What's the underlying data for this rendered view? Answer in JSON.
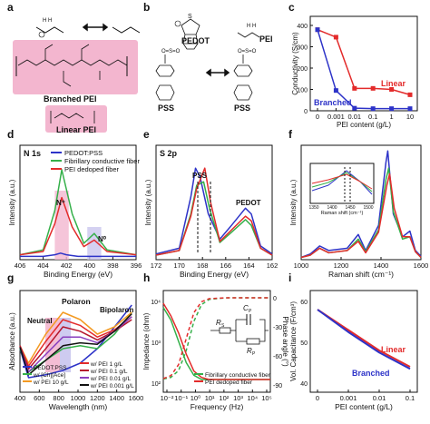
{
  "panel_letters": [
    "a",
    "b",
    "c",
    "d",
    "e",
    "f",
    "g",
    "h",
    "i"
  ],
  "colors": {
    "blue": "#2d33c8",
    "red": "#e32b2b",
    "green": "#35b04a",
    "orange": "#f39a22",
    "darkred": "#b5172e",
    "pink": "#f3b6cf",
    "lavender": "#c9c5ee",
    "black": "#111111"
  },
  "panel_a": {
    "branched_label": "Branched PEI",
    "linear_label": "Linear PEI"
  },
  "panel_b": {
    "pedot_label": "PEDOT",
    "pss_left": "PSS",
    "pss_right": "PSS",
    "pei_label": "PEI"
  },
  "chart_data": [
    {
      "panel": "c",
      "type": "line",
      "xlabel": "PEI content (g/L)",
      "ylabel": "Conductivity (S/cm)",
      "categories": [
        "0",
        "0.001",
        "0.01",
        "0.1",
        "1",
        "10"
      ],
      "ylim": [
        0,
        400
      ],
      "yticks": [
        "0",
        "100",
        "200",
        "300",
        "400"
      ],
      "series": [
        {
          "name": "Linear",
          "color": "#e32b2b",
          "values": [
            380,
            345,
            105,
            105,
            100,
            75
          ]
        },
        {
          "name": "Branched",
          "color": "#2d33c8",
          "values": [
            380,
            95,
            12,
            10,
            10,
            10
          ]
        }
      ]
    },
    {
      "panel": "d",
      "type": "line",
      "title": "N 1s",
      "xlabel": "Binding Energy (eV)",
      "ylabel": "Intensity (a.u.)",
      "xticks": [
        "406",
        "404",
        "402",
        "400",
        "398",
        "396"
      ],
      "xlim": [
        406,
        396
      ],
      "annotations": [
        "N⁺",
        "N⁰"
      ],
      "series": [
        {
          "name": "PEDOT:PSS",
          "color": "#2d33c8",
          "x": [
            406,
            404,
            403,
            402.5,
            402,
            401,
            400,
            399,
            398,
            396
          ],
          "y": [
            2,
            2,
            3,
            4,
            3,
            2,
            2,
            2,
            2,
            2
          ]
        },
        {
          "name": "Fibrillary conductive fiber",
          "color": "#35b04a",
          "x": [
            406,
            404,
            403,
            402.4,
            401.5,
            400.5,
            399.6,
            398.5,
            396
          ],
          "y": [
            3,
            6,
            30,
            55,
            28,
            10,
            16,
            6,
            3
          ]
        },
        {
          "name": "PEI dedoped fiber",
          "color": "#e32b2b",
          "x": [
            406,
            404,
            403,
            402.4,
            401.5,
            400.5,
            399.6,
            398.5,
            396
          ],
          "y": [
            3,
            5,
            22,
            38,
            20,
            8,
            12,
            5,
            3
          ]
        }
      ]
    },
    {
      "panel": "e",
      "type": "line",
      "title": "S 2p",
      "xlabel": "Binding Energy (eV)",
      "ylabel": "Intensity (a.u.)",
      "xticks": [
        "172",
        "170",
        "168",
        "166",
        "164",
        "162"
      ],
      "xlim": [
        172,
        162
      ],
      "annotations": [
        "PSS",
        "PEDOT"
      ],
      "series": [
        {
          "name": "PEDOT:PSS",
          "color": "#2d33c8",
          "x": [
            172,
            170,
            169,
            168.6,
            168.2,
            167.5,
            166.5,
            165.5,
            164.3,
            163.8,
            163,
            162
          ],
          "y": [
            5,
            10,
            55,
            80,
            72,
            40,
            18,
            30,
            45,
            40,
            12,
            5
          ]
        },
        {
          "name": "Fibrillary conductive fiber",
          "color": "#35b04a",
          "x": [
            172,
            170,
            169,
            168.5,
            167.9,
            167.4,
            166.5,
            165.5,
            164.3,
            163.8,
            163,
            162
          ],
          "y": [
            4,
            8,
            40,
            65,
            68,
            45,
            15,
            24,
            35,
            30,
            10,
            4
          ]
        },
        {
          "name": "PEI dedoped fiber",
          "color": "#e32b2b",
          "x": [
            172,
            170,
            169,
            168.5,
            167.8,
            167.3,
            166.5,
            165.5,
            164.3,
            163.8,
            163,
            162
          ],
          "y": [
            4,
            8,
            38,
            62,
            80,
            50,
            16,
            26,
            38,
            34,
            10,
            4
          ]
        }
      ]
    },
    {
      "panel": "f",
      "type": "line",
      "xlabel": "Raman shift (cm⁻¹)",
      "ylabel": "Intensity (a.u.)",
      "xticks": [
        "1000",
        "1200",
        "1400",
        "1600"
      ],
      "xlim": [
        950,
        1600
      ],
      "inset": {
        "xlabel": "Raman shift (cm⁻¹)",
        "xticks": [
          "1350",
          "1400",
          "1450",
          "1500"
        ]
      },
      "series": [
        {
          "name": "PEDOT:PSS",
          "color": "#2d33c8",
          "x": [
            950,
            1000,
            1050,
            1100,
            1200,
            1260,
            1300,
            1370,
            1410,
            1420,
            1450,
            1500,
            1540,
            1570,
            1600
          ],
          "y": [
            2,
            5,
            12,
            8,
            10,
            22,
            8,
            30,
            85,
            95,
            40,
            20,
            25,
            8,
            3
          ]
        },
        {
          "name": "Fibrillary conductive fiber",
          "color": "#35b04a",
          "x": [
            950,
            1000,
            1050,
            1100,
            1200,
            1260,
            1300,
            1370,
            1410,
            1425,
            1450,
            1500,
            1540,
            1570,
            1600
          ],
          "y": [
            2,
            4,
            10,
            6,
            8,
            18,
            7,
            26,
            70,
            80,
            42,
            18,
            20,
            7,
            2
          ]
        },
        {
          "name": "PEI dedoped fiber",
          "color": "#e32b2b",
          "x": [
            950,
            1000,
            1050,
            1100,
            1200,
            1260,
            1300,
            1370,
            1415,
            1430,
            1455,
            1500,
            1540,
            1570,
            1600
          ],
          "y": [
            2,
            4,
            10,
            6,
            8,
            16,
            6,
            24,
            65,
            75,
            45,
            20,
            20,
            7,
            2
          ]
        }
      ]
    },
    {
      "panel": "g",
      "type": "line",
      "xlabel": "Wavelength (nm)",
      "ylabel": "Absorbance (a.u.)",
      "xticks": [
        "400",
        "600",
        "800",
        "1000",
        "1200",
        "1400",
        "1600"
      ],
      "xlim": [
        300,
        1650
      ],
      "annotations": [
        "Polaron",
        "Neutral",
        "Bipolaron"
      ],
      "series": [
        {
          "name": "PEDOT:PSS",
          "color": "#2d33c8",
          "x": [
            300,
            400,
            600,
            800,
            1000,
            1200,
            1400,
            1600
          ],
          "y": [
            30,
            10,
            12,
            15,
            20,
            30,
            45,
            60
          ]
        },
        {
          "name": "w/ [Ch][Ace]",
          "color": "#35b04a",
          "x": [
            300,
            400,
            600,
            800,
            1000,
            1200,
            1400,
            1600
          ],
          "y": [
            30,
            14,
            22,
            30,
            32,
            30,
            40,
            55
          ]
        },
        {
          "name": "w/ PEI 10 g/L",
          "color": "#f39a22",
          "x": [
            300,
            400,
            600,
            800,
            1000,
            1200,
            1400,
            1600
          ],
          "y": [
            32,
            20,
            40,
            55,
            50,
            40,
            45,
            55
          ]
        },
        {
          "name": "w/ PEI 1 g/L",
          "color": "#e32b2b",
          "x": [
            300,
            400,
            600,
            800,
            1000,
            1200,
            1400,
            1600
          ],
          "y": [
            32,
            18,
            35,
            50,
            46,
            38,
            43,
            52
          ]
        },
        {
          "name": "w/ PEI 0.1 g/L",
          "color": "#b5172e",
          "x": [
            300,
            400,
            600,
            800,
            1000,
            1200,
            1400,
            1600
          ],
          "y": [
            32,
            16,
            30,
            45,
            42,
            36,
            42,
            50
          ]
        },
        {
          "name": "w/ PEI 0.01 g/L",
          "color": "#8a3fbf",
          "x": [
            300,
            400,
            600,
            800,
            1000,
            1200,
            1400,
            1600
          ],
          "y": [
            31,
            14,
            26,
            38,
            38,
            34,
            42,
            52
          ]
        },
        {
          "name": "w/ PEI 0.001 g/L",
          "color": "#111111",
          "x": [
            300,
            400,
            600,
            800,
            1000,
            1200,
            1400,
            1600
          ],
          "y": [
            31,
            12,
            22,
            32,
            34,
            33,
            42,
            54
          ]
        }
      ]
    },
    {
      "panel": "h",
      "type": "line",
      "xlabel": "Frequency (Hz)",
      "ylabel": "Impedance (ohm)",
      "ylabel_right": "Phase angle (°)",
      "xticks": [
        "10⁻²",
        "10⁻¹",
        "10⁰",
        "10¹",
        "10²",
        "10³",
        "10⁴",
        "10⁵"
      ],
      "yticks": [
        "10²",
        "10³",
        "10⁴"
      ],
      "yticks_right": [
        "0",
        "-30",
        "-60",
        "-90"
      ],
      "circuit": {
        "rs": "R_S",
        "cp": "C_P",
        "rp": "R_P"
      },
      "series": [
        {
          "name": "Fibrillary conductive fiber",
          "color": "#35b04a",
          "x": [
            -2,
            -1.5,
            -1,
            -0.5,
            0,
            0.5,
            1,
            2,
            3,
            4,
            5
          ],
          "y": [
            3.9,
            3.6,
            3.1,
            2.6,
            2.3,
            2.2,
            2.2,
            2.2,
            2.2,
            2.2,
            2.2
          ]
        },
        {
          "name": "PEI dedoped fiber",
          "color": "#e32b2b",
          "x": [
            -2,
            -1.5,
            -1,
            -0.5,
            0,
            0.5,
            1,
            2,
            3,
            4,
            5
          ],
          "y": [
            4.0,
            3.7,
            3.3,
            2.8,
            2.4,
            2.25,
            2.2,
            2.2,
            2.2,
            2.2,
            2.2
          ]
        }
      ]
    },
    {
      "panel": "i",
      "type": "line",
      "xlabel": "PEI content (g/L)",
      "ylabel": "Vol. Capacitance (F/cm³)",
      "categories": [
        "0",
        "0.001",
        "0.01",
        "0.1"
      ],
      "ylim": [
        40,
        60
      ],
      "yticks": [
        "40",
        "50",
        "60"
      ],
      "series": [
        {
          "name": "Linear",
          "color": "#e32b2b",
          "values": [
            58,
            53,
            48,
            44
          ]
        },
        {
          "name": "Branched",
          "color": "#2d33c8",
          "values": [
            58,
            52.5,
            47.5,
            43.5
          ]
        }
      ]
    }
  ]
}
